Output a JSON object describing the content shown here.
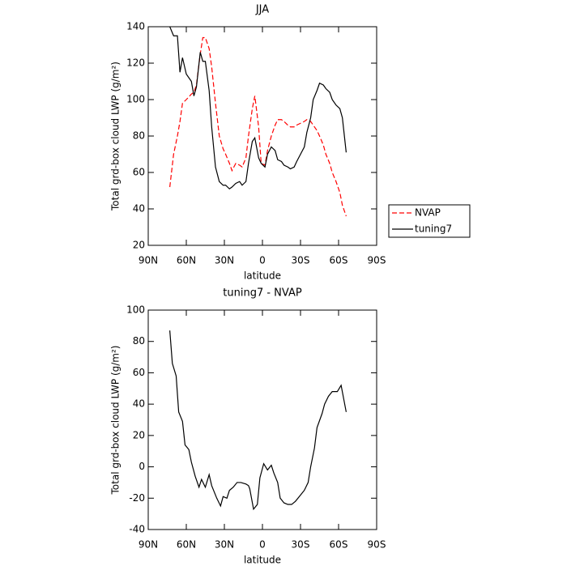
{
  "chart_data": [
    {
      "type": "line",
      "title": "JJA",
      "x_label": "latitude",
      "y_label": "Total grd-box cloud LWP (g/m²)",
      "xlim": [
        90,
        -90
      ],
      "xticks": [
        {
          "value": 90,
          "label": "90N"
        },
        {
          "value": 60,
          "label": "60N"
        },
        {
          "value": 30,
          "label": "30N"
        },
        0,
        {
          "value": -30,
          "label": "30S"
        },
        {
          "value": -60,
          "label": "60S"
        },
        {
          "value": -90,
          "label": "90S"
        }
      ],
      "ylim": [
        20,
        140
      ],
      "yticks": [
        20,
        40,
        60,
        80,
        100,
        120,
        140
      ],
      "legend": "right",
      "x": [
        73,
        70,
        67,
        65,
        63,
        60,
        56,
        54,
        52,
        49,
        47,
        45,
        42,
        40,
        37,
        34,
        31,
        29,
        26,
        24,
        21,
        18,
        16,
        13,
        11,
        8,
        6,
        3,
        1,
        -2,
        -4,
        -7,
        -10,
        -12,
        -15,
        -17,
        -20,
        -22,
        -25,
        -27,
        -30,
        -33,
        -35,
        -38,
        -40,
        -43,
        -45,
        -48,
        -50,
        -53,
        -55,
        -58,
        -61,
        -63,
        -66
      ],
      "series": [
        {
          "name": "NVAP",
          "color": "#ff0000",
          "line_style": "dashed",
          "values": [
            52,
            70,
            80,
            88,
            98,
            100,
            103,
            104,
            108,
            125,
            134,
            134,
            128,
            118,
            98,
            80,
            73,
            70,
            65,
            61,
            65,
            64,
            63,
            68,
            80,
            95,
            102,
            85,
            65,
            64,
            72,
            80,
            86,
            89,
            89,
            88,
            86,
            85,
            85,
            86,
            87,
            88,
            89,
            88,
            86,
            83,
            80,
            75,
            70,
            65,
            60,
            55,
            49,
            42,
            36
          ]
        },
        {
          "name": "tuning7",
          "color": "#000000",
          "line_style": "solid",
          "values": [
            140,
            135,
            135,
            115,
            123,
            114,
            110,
            102,
            107,
            126,
            121,
            121,
            105,
            85,
            63,
            55,
            53,
            53,
            51,
            52,
            54,
            55,
            53,
            55,
            65,
            77,
            79,
            68,
            65,
            63,
            70,
            74,
            72,
            67,
            66,
            64,
            63,
            62,
            63,
            66,
            70,
            74,
            82,
            90,
            100,
            105,
            109,
            108,
            106,
            104,
            100,
            97,
            95,
            90,
            71
          ]
        }
      ]
    },
    {
      "type": "line",
      "title": "tuning7 - NVAP",
      "x_label": "latitude",
      "y_label": "Total grd-box cloud LWP (g/m²)",
      "xlim": [
        90,
        -90
      ],
      "xticks": [
        {
          "value": 90,
          "label": "90N"
        },
        {
          "value": 60,
          "label": "60N"
        },
        {
          "value": 30,
          "label": "30N"
        },
        0,
        {
          "value": -30,
          "label": "30S"
        },
        {
          "value": -60,
          "label": "60S"
        },
        {
          "value": -90,
          "label": "90S"
        }
      ],
      "ylim": [
        -40,
        100
      ],
      "yticks": [
        -40,
        -20,
        0,
        20,
        40,
        60,
        80,
        100
      ],
      "x": [
        73,
        71,
        68,
        66,
        63,
        61,
        58,
        56,
        53,
        50,
        48,
        45,
        42,
        40,
        36,
        33,
        31,
        28,
        26,
        23,
        20,
        17,
        13,
        11,
        10,
        7,
        4,
        2,
        -1,
        -4,
        -7,
        -9,
        -12,
        -14,
        -17,
        -20,
        -23,
        -26,
        -29,
        -33,
        -36,
        -38,
        -41,
        -43,
        -47,
        -49,
        -52,
        -55,
        -59,
        -62,
        -66
      ],
      "series": [
        {
          "color": "#000000",
          "line_style": "solid",
          "values": [
            87,
            66,
            58,
            35,
            29,
            14,
            11,
            3,
            -6,
            -13,
            -8,
            -13,
            -5,
            -12,
            -20,
            -25,
            -19,
            -20,
            -15,
            -13,
            -10,
            -10,
            -11,
            -12,
            -14,
            -27,
            -24,
            -7,
            2,
            -2,
            1,
            -4,
            -10,
            -20,
            -23,
            -24,
            -24,
            -22,
            -19,
            -15,
            -10,
            0,
            12,
            25,
            34,
            40,
            45,
            48,
            48,
            52,
            35
          ]
        }
      ]
    }
  ]
}
